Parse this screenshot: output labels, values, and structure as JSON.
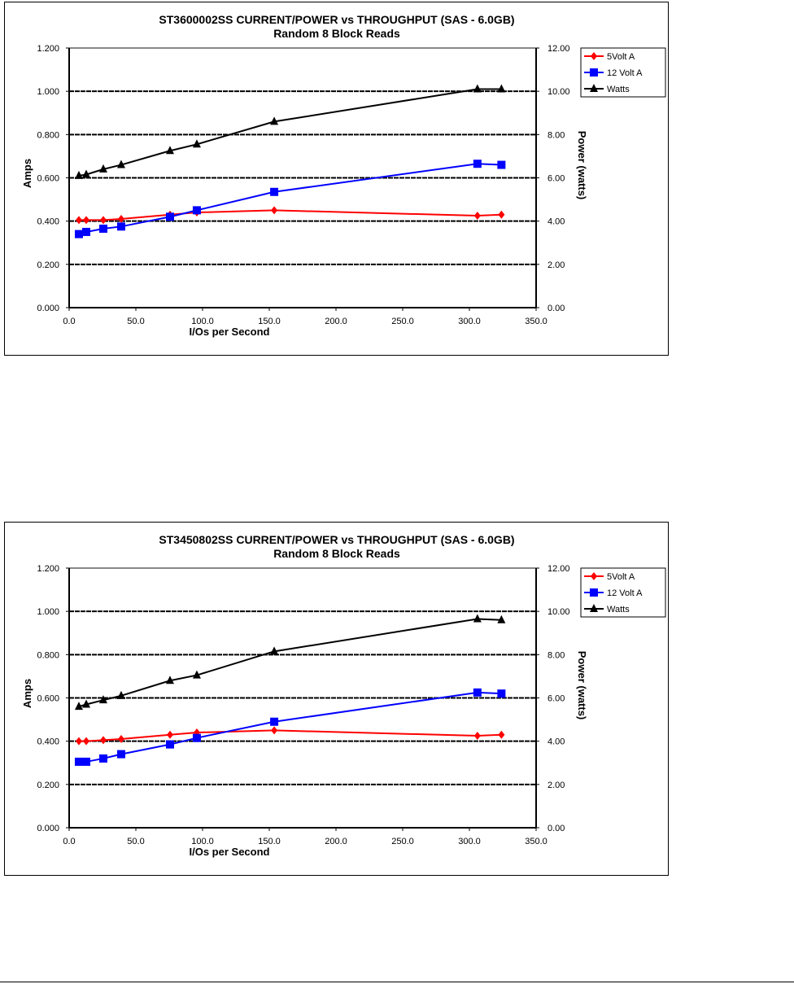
{
  "chart_data": [
    {
      "type": "line",
      "title": "ST3600002SS CURRENT/POWER vs THROUGHPUT (SAS  - 6.0GB)",
      "subtitle": "Random 8 Block Reads",
      "xlabel": "I/Os per Second",
      "ylabel": "Amps",
      "y2label": "Power (watts)",
      "xlim": [
        0,
        350
      ],
      "ylim": [
        0,
        1.2
      ],
      "y2lim": [
        0,
        12
      ],
      "xticks": [
        "0.0",
        "50.0",
        "100.0",
        "150.0",
        "200.0",
        "250.0",
        "300.0",
        "350.0"
      ],
      "yticks": [
        "0.000",
        "0.200",
        "0.400",
        "0.600",
        "0.800",
        "1.000",
        "1.200"
      ],
      "y2ticks": [
        "0.00",
        "2.00",
        "4.00",
        "6.00",
        "8.00",
        "10.00",
        "12.00"
      ],
      "legend": "top-right",
      "x": [
        7.3,
        12.8,
        25.6,
        39.0,
        75.6,
        95.7,
        153.7,
        306,
        324
      ],
      "series": [
        {
          "name": "5Volt A",
          "axis": "left",
          "color": "#ff0000",
          "marker": "diamond",
          "values": [
            0.405,
            0.405,
            0.405,
            0.41,
            0.43,
            0.44,
            0.45,
            0.425,
            0.43
          ]
        },
        {
          "name": "12 Volt A",
          "axis": "left",
          "color": "#0000ff",
          "marker": "square",
          "values": [
            0.34,
            0.35,
            0.365,
            0.375,
            0.42,
            0.45,
            0.535,
            0.665,
            0.66
          ]
        },
        {
          "name": "Watts",
          "axis": "right",
          "color": "#000000",
          "marker": "triangle",
          "values": [
            6.1,
            6.15,
            6.4,
            6.6,
            7.25,
            7.55,
            8.6,
            10.1,
            10.1
          ]
        }
      ]
    },
    {
      "type": "line",
      "title": "ST3450802SS CURRENT/POWER vs THROUGHPUT (SAS  - 6.0GB)",
      "subtitle": "Random 8 Block Reads",
      "xlabel": "I/Os per Second",
      "ylabel": "Amps",
      "y2label": "Power (watts)",
      "xlim": [
        0,
        350
      ],
      "ylim": [
        0,
        1.2
      ],
      "y2lim": [
        0,
        12
      ],
      "xticks": [
        "0.0",
        "50.0",
        "100.0",
        "150.0",
        "200.0",
        "250.0",
        "300.0",
        "350.0"
      ],
      "yticks": [
        "0.000",
        "0.200",
        "0.400",
        "0.600",
        "0.800",
        "1.000",
        "1.200"
      ],
      "y2ticks": [
        "0.00",
        "2.00",
        "4.00",
        "6.00",
        "8.00",
        "10.00",
        "12.00"
      ],
      "legend": "top-right",
      "x": [
        7.3,
        12.8,
        25.6,
        39.0,
        75.6,
        95.7,
        153.7,
        306,
        324
      ],
      "series": [
        {
          "name": "5Volt A",
          "axis": "left",
          "color": "#ff0000",
          "marker": "diamond",
          "values": [
            0.4,
            0.4,
            0.405,
            0.41,
            0.43,
            0.44,
            0.45,
            0.425,
            0.43
          ]
        },
        {
          "name": "12 Volt A",
          "axis": "left",
          "color": "#0000ff",
          "marker": "square",
          "values": [
            0.305,
            0.305,
            0.32,
            0.34,
            0.385,
            0.415,
            0.49,
            0.625,
            0.62
          ]
        },
        {
          "name": "Watts",
          "axis": "right",
          "color": "#000000",
          "marker": "triangle",
          "values": [
            5.6,
            5.7,
            5.9,
            6.1,
            6.8,
            7.05,
            8.15,
            9.65,
            9.6
          ]
        }
      ]
    }
  ]
}
